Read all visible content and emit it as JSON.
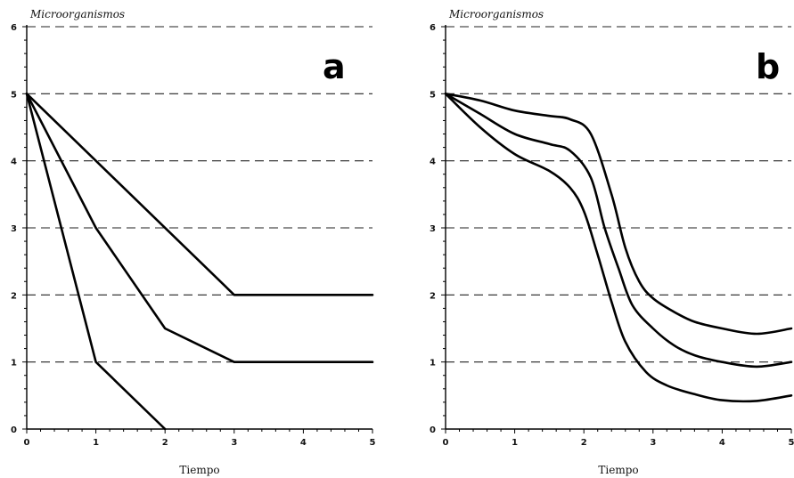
{
  "chart_data": [
    {
      "type": "line",
      "panel_label": "a",
      "title": "Microorganismos",
      "xlabel": "Tiempo",
      "ylabel": "",
      "xlim": [
        0,
        5
      ],
      "ylim": [
        0,
        6
      ],
      "xticks": [
        "0",
        "1",
        "2",
        "3",
        "4",
        "5"
      ],
      "yticks": [
        "0",
        "1",
        "2",
        "3",
        "4",
        "5",
        "6"
      ],
      "grid": "horizontal dashed",
      "series": [
        {
          "x": [
            0,
            3,
            5
          ],
          "y": [
            5,
            2,
            2
          ]
        },
        {
          "x": [
            0,
            1,
            2,
            3,
            5
          ],
          "y": [
            5,
            3,
            1.5,
            1,
            1
          ]
        },
        {
          "x": [
            0,
            1,
            2
          ],
          "y": [
            5,
            1,
            0
          ]
        }
      ]
    },
    {
      "type": "line",
      "panel_label": "b",
      "title": "Microorganismos",
      "xlabel": "Tiempo",
      "ylabel": "",
      "xlim": [
        0,
        5
      ],
      "ylim": [
        0,
        6
      ],
      "xticks": [
        "0",
        "1",
        "2",
        "3",
        "4",
        "5"
      ],
      "yticks": [
        "0",
        "1",
        "2",
        "3",
        "4",
        "5",
        "6"
      ],
      "grid": "horizontal dashed",
      "series": [
        {
          "x": [
            0,
            0.5,
            1,
            1.5,
            1.8,
            2.1,
            2.4,
            2.6,
            2.8,
            3.0,
            3.3,
            3.6,
            4.0,
            4.5,
            5.0
          ],
          "y": [
            5,
            4.9,
            4.75,
            4.67,
            4.62,
            4.4,
            3.5,
            2.7,
            2.2,
            1.95,
            1.75,
            1.6,
            1.5,
            1.42,
            1.5
          ]
        },
        {
          "x": [
            0,
            0.5,
            1,
            1.5,
            1.8,
            2.1,
            2.3,
            2.5,
            2.7,
            3.0,
            3.3,
            3.6,
            4.0,
            4.5,
            5.0
          ],
          "y": [
            5,
            4.7,
            4.4,
            4.25,
            4.15,
            3.75,
            3.0,
            2.4,
            1.85,
            1.5,
            1.25,
            1.1,
            1.0,
            0.93,
            1.0
          ]
        },
        {
          "x": [
            0,
            0.5,
            1,
            1.5,
            1.8,
            2.0,
            2.2,
            2.4,
            2.6,
            2.9,
            3.2,
            3.6,
            4.0,
            4.5,
            5.0
          ],
          "y": [
            5,
            4.5,
            4.1,
            3.85,
            3.6,
            3.25,
            2.6,
            1.9,
            1.3,
            0.85,
            0.65,
            0.52,
            0.43,
            0.42,
            0.5
          ]
        }
      ]
    }
  ]
}
